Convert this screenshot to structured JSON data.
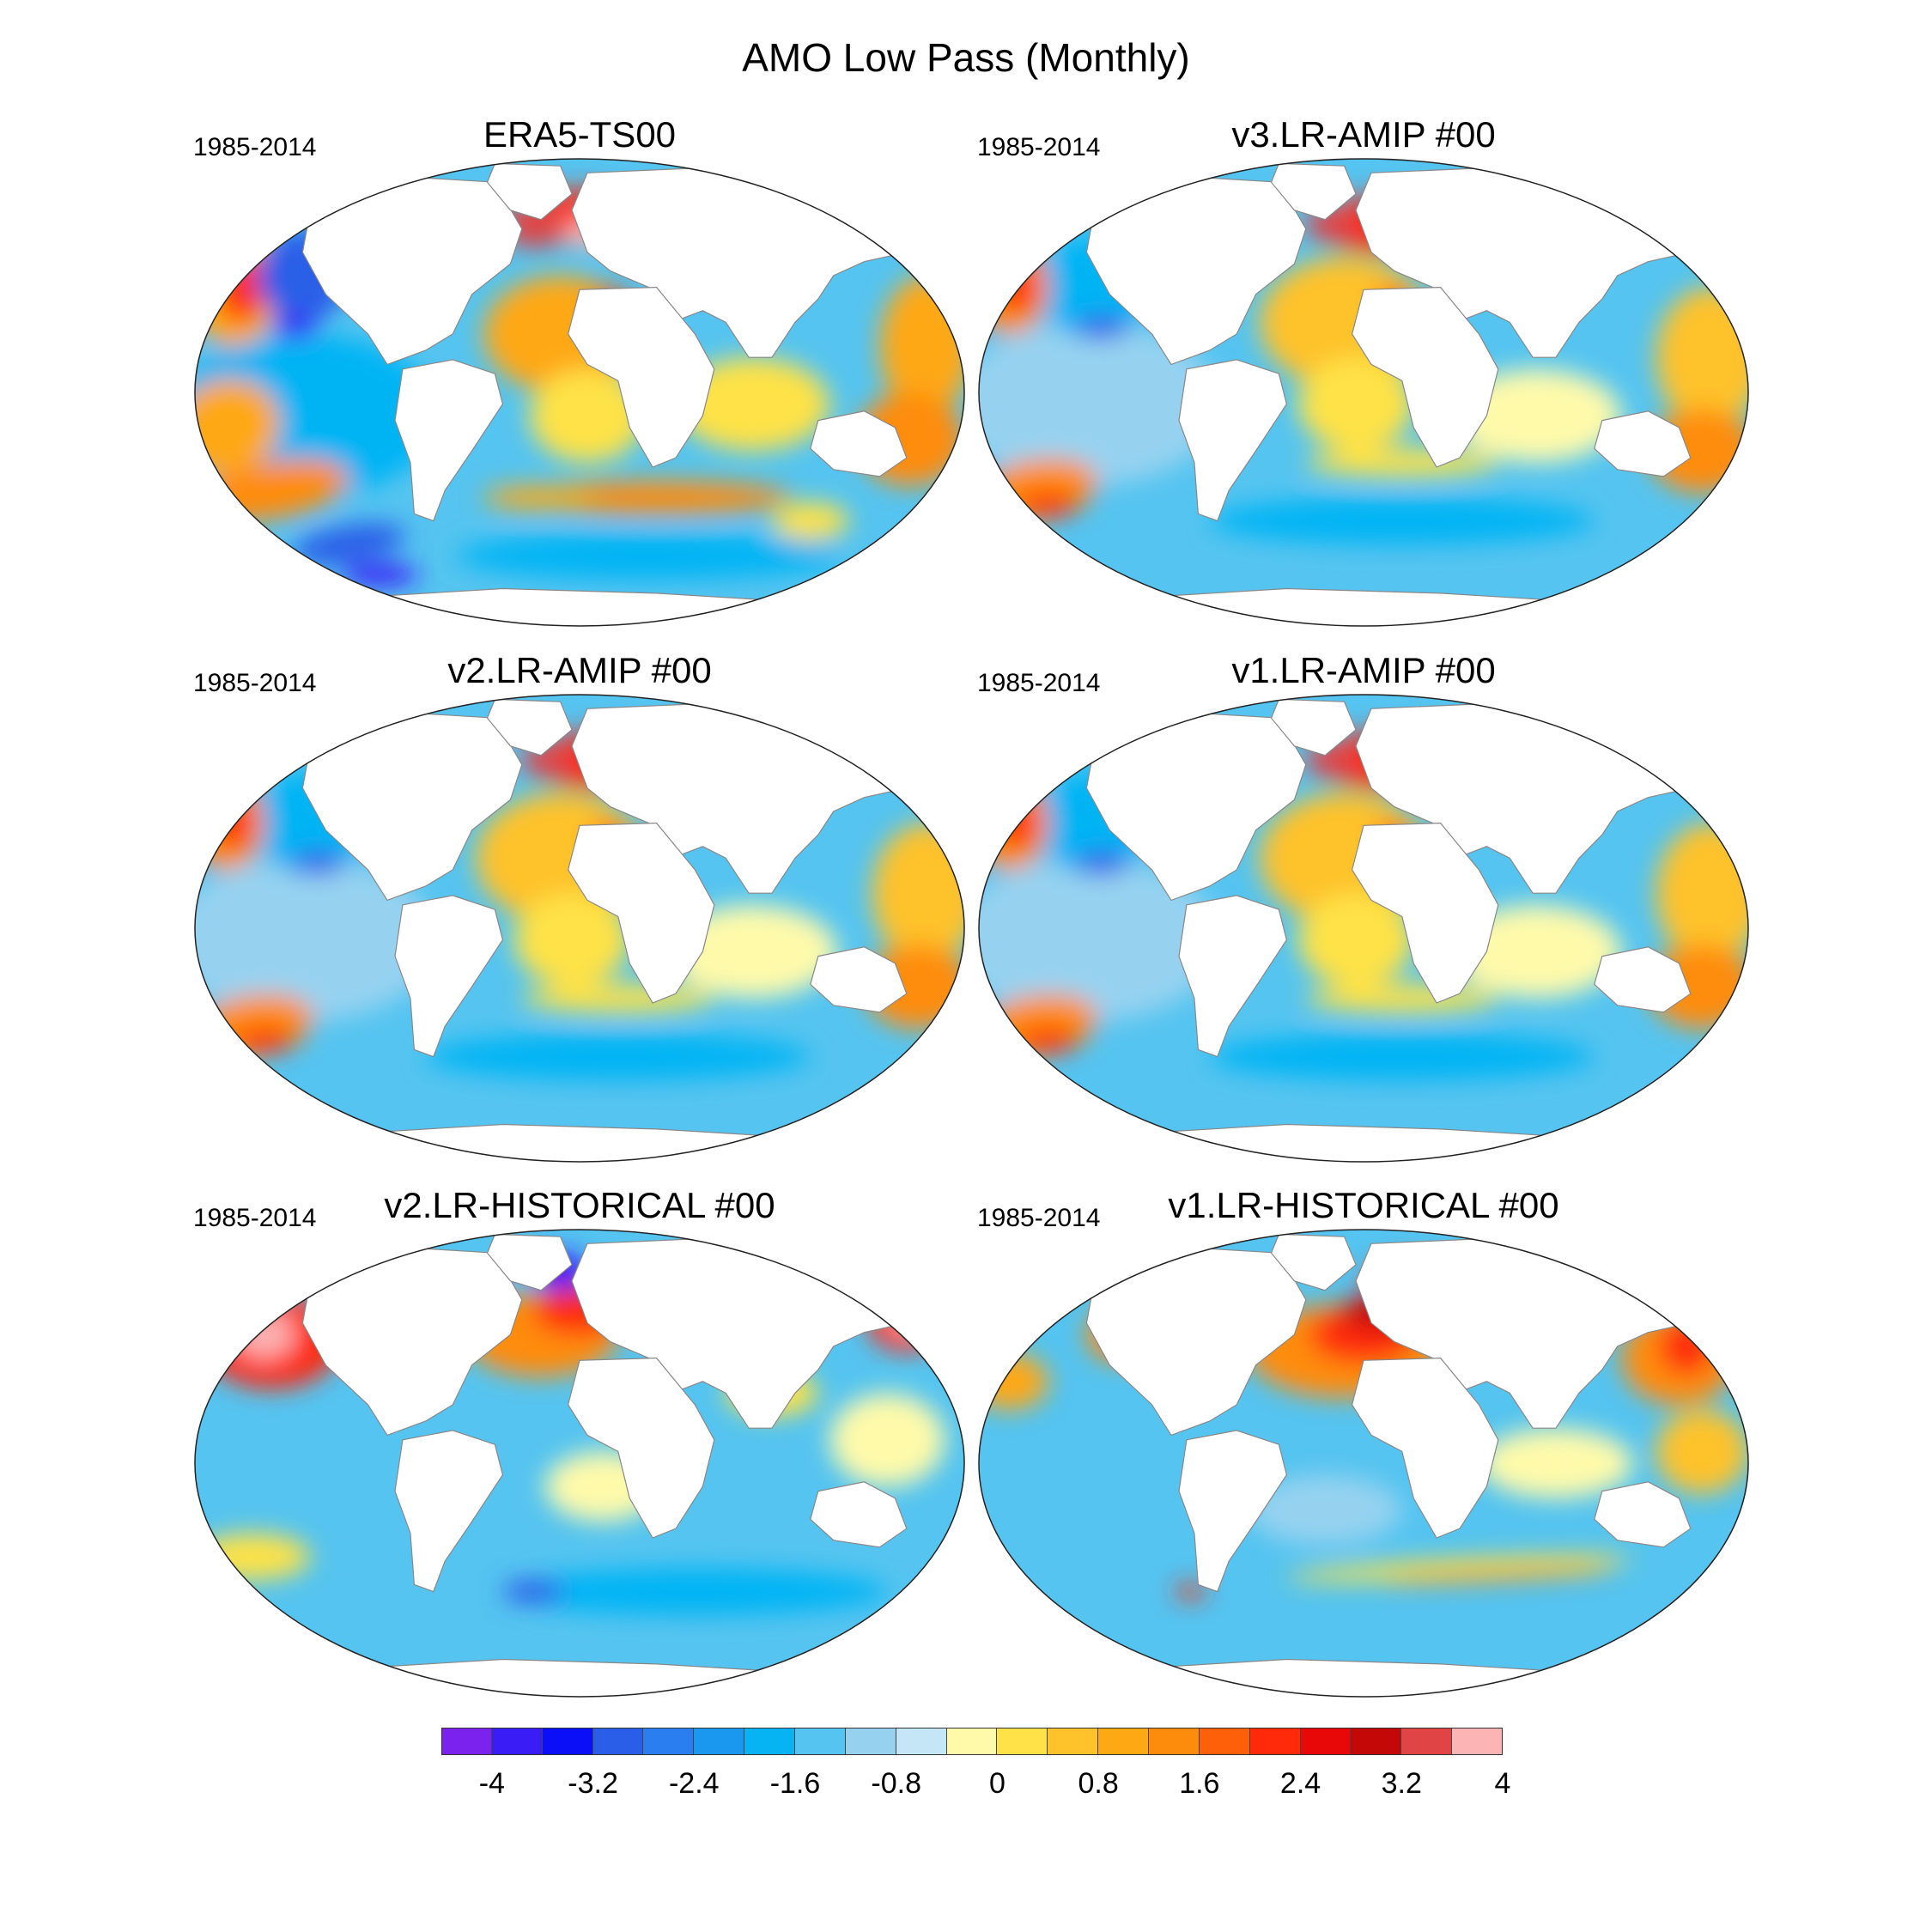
{
  "title": "AMO Low Pass (Monthly)",
  "panels": [
    {
      "title": "ERA5-TS00",
      "period": "1985-2014",
      "pattern": "obs"
    },
    {
      "title": "v3.LR-AMIP  #00",
      "period": "1985-2014",
      "pattern": "amip"
    },
    {
      "title": "v2.LR-AMIP  #00",
      "period": "1985-2014",
      "pattern": "amip"
    },
    {
      "title": "v1.LR-AMIP  #00",
      "period": "1985-2014",
      "pattern": "amip"
    },
    {
      "title": "v2.LR-HISTORICAL  #00",
      "period": "1985-2014",
      "pattern": "hist2"
    },
    {
      "title": "v1.LR-HISTORICAL  #00",
      "period": "1985-2014",
      "pattern": "hist1"
    }
  ],
  "colorbar": {
    "colors": [
      "#7b22ee",
      "#3a1cf6",
      "#0a0ff8",
      "#2a5ee8",
      "#2a7ef0",
      "#1a98f0",
      "#06b4f4",
      "#55c4f0",
      "#96d2f0",
      "#c4e6f6",
      "#fefaaa",
      "#fee247",
      "#fec22a",
      "#fea814",
      "#fe8c0c",
      "#fe600a",
      "#fe2a0a",
      "#e80808",
      "#c40808",
      "#e04444",
      "#fcb4b4"
    ],
    "labels": [
      "-4",
      "-3.2",
      "-2.4",
      "-1.6",
      "-0.8",
      "0",
      "0.8",
      "1.6",
      "2.4",
      "3.2",
      "4"
    ]
  }
}
